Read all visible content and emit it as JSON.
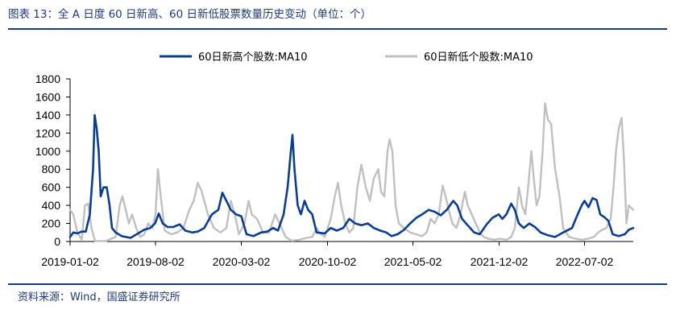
{
  "header": {
    "title": "图表 13：全 A 日度 60 日新高、60 日新低股票数量历史变动（单位：个）"
  },
  "footer": {
    "source": "资料来源：Wind，国盛证券研究所"
  },
  "colors": {
    "high": "#0b3d91",
    "low": "#c0c0c0",
    "brand": "#1f3a7a"
  },
  "chart_data": {
    "type": "line",
    "title": "",
    "xlabel": "",
    "ylabel": "",
    "ylim": [
      0,
      1800
    ],
    "yticks": [
      0,
      200,
      400,
      600,
      800,
      1000,
      1200,
      1400,
      1600,
      1800
    ],
    "xlim": [
      "2019-01-02",
      "2022-10-31"
    ],
    "xticks": [
      "2019-01-02",
      "2019-08-02",
      "2020-03-02",
      "2020-10-02",
      "2021-05-02",
      "2021-12-02",
      "2022-07-02"
    ],
    "grid": false,
    "legend_position": "top",
    "series": [
      {
        "name": "60日新高个股数:MA10",
        "color": "#0b3d91",
        "points": [
          [
            "2019-01-02",
            50
          ],
          [
            "2019-01-10",
            100
          ],
          [
            "2019-01-20",
            90
          ],
          [
            "2019-01-31",
            110
          ],
          [
            "2019-02-10",
            110
          ],
          [
            "2019-02-20",
            300
          ],
          [
            "2019-02-28",
            800
          ],
          [
            "2019-03-04",
            1400
          ],
          [
            "2019-03-09",
            1250
          ],
          [
            "2019-03-14",
            1000
          ],
          [
            "2019-03-19",
            500
          ],
          [
            "2019-03-26",
            600
          ],
          [
            "2019-04-03",
            600
          ],
          [
            "2019-04-10",
            400
          ],
          [
            "2019-04-16",
            150
          ],
          [
            "2019-04-25",
            100
          ],
          [
            "2019-05-10",
            60
          ],
          [
            "2019-06-01",
            40
          ],
          [
            "2019-06-20",
            90
          ],
          [
            "2019-07-05",
            130
          ],
          [
            "2019-07-20",
            150
          ],
          [
            "2019-08-01",
            200
          ],
          [
            "2019-08-10",
            310
          ],
          [
            "2019-08-20",
            200
          ],
          [
            "2019-09-01",
            160
          ],
          [
            "2019-09-15",
            160
          ],
          [
            "2019-10-01",
            190
          ],
          [
            "2019-10-15",
            120
          ],
          [
            "2019-11-01",
            100
          ],
          [
            "2019-11-15",
            110
          ],
          [
            "2019-12-01",
            150
          ],
          [
            "2019-12-20",
            300
          ],
          [
            "2020-01-05",
            350
          ],
          [
            "2020-01-15",
            540
          ],
          [
            "2020-01-25",
            450
          ],
          [
            "2020-02-05",
            350
          ],
          [
            "2020-02-18",
            300
          ],
          [
            "2020-03-02",
            280
          ],
          [
            "2020-03-15",
            80
          ],
          [
            "2020-04-01",
            60
          ],
          [
            "2020-04-20",
            100
          ],
          [
            "2020-05-05",
            110
          ],
          [
            "2020-05-20",
            150
          ],
          [
            "2020-06-01",
            120
          ],
          [
            "2020-06-15",
            300
          ],
          [
            "2020-06-25",
            600
          ],
          [
            "2020-07-03",
            1000
          ],
          [
            "2020-07-07",
            1180
          ],
          [
            "2020-07-12",
            800
          ],
          [
            "2020-07-20",
            400
          ],
          [
            "2020-07-28",
            300
          ],
          [
            "2020-08-06",
            450
          ],
          [
            "2020-08-15",
            350
          ],
          [
            "2020-08-25",
            300
          ],
          [
            "2020-09-05",
            100
          ],
          [
            "2020-09-25",
            90
          ],
          [
            "2020-10-10",
            150
          ],
          [
            "2020-10-25",
            120
          ],
          [
            "2020-11-10",
            150
          ],
          [
            "2020-11-25",
            250
          ],
          [
            "2020-12-10",
            200
          ],
          [
            "2020-12-25",
            180
          ],
          [
            "2021-01-10",
            200
          ],
          [
            "2021-01-25",
            150
          ],
          [
            "2021-02-10",
            120
          ],
          [
            "2021-02-25",
            100
          ],
          [
            "2021-03-10",
            60
          ],
          [
            "2021-03-25",
            80
          ],
          [
            "2021-04-10",
            130
          ],
          [
            "2021-04-25",
            200
          ],
          [
            "2021-05-10",
            260
          ],
          [
            "2021-05-25",
            300
          ],
          [
            "2021-06-10",
            350
          ],
          [
            "2021-06-25",
            330
          ],
          [
            "2021-07-10",
            290
          ],
          [
            "2021-07-25",
            350
          ],
          [
            "2021-08-10",
            450
          ],
          [
            "2021-08-20",
            400
          ],
          [
            "2021-09-01",
            250
          ],
          [
            "2021-09-15",
            180
          ],
          [
            "2021-10-01",
            100
          ],
          [
            "2021-10-15",
            80
          ],
          [
            "2021-11-01",
            190
          ],
          [
            "2021-11-15",
            260
          ],
          [
            "2021-12-01",
            300
          ],
          [
            "2021-12-10",
            250
          ],
          [
            "2021-12-20",
            300
          ],
          [
            "2022-01-01",
            420
          ],
          [
            "2022-01-10",
            350
          ],
          [
            "2022-01-20",
            200
          ],
          [
            "2022-02-01",
            150
          ],
          [
            "2022-02-15",
            200
          ],
          [
            "2022-03-01",
            160
          ],
          [
            "2022-03-15",
            100
          ],
          [
            "2022-04-01",
            70
          ],
          [
            "2022-04-20",
            50
          ],
          [
            "2022-05-10",
            100
          ],
          [
            "2022-06-01",
            150
          ],
          [
            "2022-06-15",
            300
          ],
          [
            "2022-06-25",
            400
          ],
          [
            "2022-07-02",
            450
          ],
          [
            "2022-07-12",
            380
          ],
          [
            "2022-07-22",
            480
          ],
          [
            "2022-08-01",
            460
          ],
          [
            "2022-08-10",
            300
          ],
          [
            "2022-08-20",
            270
          ],
          [
            "2022-08-30",
            230
          ],
          [
            "2022-09-10",
            80
          ],
          [
            "2022-09-25",
            60
          ],
          [
            "2022-10-10",
            80
          ],
          [
            "2022-10-20",
            130
          ],
          [
            "2022-10-31",
            150
          ]
        ]
      },
      {
        "name": "60日新低个股数:MA10",
        "color": "#c0c0c0",
        "points": [
          [
            "2019-01-02",
            350
          ],
          [
            "2019-01-10",
            300
          ],
          [
            "2019-01-20",
            100
          ],
          [
            "2019-01-31",
            20
          ],
          [
            "2019-02-08",
            400
          ],
          [
            "2019-02-16",
            420
          ],
          [
            "2019-02-24",
            150
          ],
          [
            "2019-03-05",
            5
          ],
          [
            "2019-04-01",
            5
          ],
          [
            "2019-04-25",
            50
          ],
          [
            "2019-05-05",
            400
          ],
          [
            "2019-05-12",
            500
          ],
          [
            "2019-05-20",
            350
          ],
          [
            "2019-05-28",
            200
          ],
          [
            "2019-06-05",
            300
          ],
          [
            "2019-06-15",
            150
          ],
          [
            "2019-06-25",
            50
          ],
          [
            "2019-07-05",
            80
          ],
          [
            "2019-07-15",
            200
          ],
          [
            "2019-07-25",
            150
          ],
          [
            "2019-08-02",
            300
          ],
          [
            "2019-08-08",
            800
          ],
          [
            "2019-08-15",
            500
          ],
          [
            "2019-08-25",
            120
          ],
          [
            "2019-09-10",
            80
          ],
          [
            "2019-09-25",
            100
          ],
          [
            "2019-10-10",
            150
          ],
          [
            "2019-10-25",
            350
          ],
          [
            "2019-11-05",
            450
          ],
          [
            "2019-11-15",
            650
          ],
          [
            "2019-11-25",
            550
          ],
          [
            "2019-12-10",
            300
          ],
          [
            "2019-12-25",
            150
          ],
          [
            "2020-01-10",
            100
          ],
          [
            "2020-01-25",
            150
          ],
          [
            "2020-02-05",
            450
          ],
          [
            "2020-02-15",
            300
          ],
          [
            "2020-02-25",
            80
          ],
          [
            "2020-03-10",
            200
          ],
          [
            "2020-03-20",
            450
          ],
          [
            "2020-03-28",
            300
          ],
          [
            "2020-04-10",
            250
          ],
          [
            "2020-04-25",
            100
          ],
          [
            "2020-05-10",
            100
          ],
          [
            "2020-05-25",
            300
          ],
          [
            "2020-06-05",
            200
          ],
          [
            "2020-06-20",
            50
          ],
          [
            "2020-07-05",
            10
          ],
          [
            "2020-07-25",
            20
          ],
          [
            "2020-08-10",
            40
          ],
          [
            "2020-08-25",
            50
          ],
          [
            "2020-09-05",
            150
          ],
          [
            "2020-09-12",
            100
          ],
          [
            "2020-09-25",
            50
          ],
          [
            "2020-10-10",
            250
          ],
          [
            "2020-10-20",
            500
          ],
          [
            "2020-10-28",
            650
          ],
          [
            "2020-11-05",
            400
          ],
          [
            "2020-11-15",
            200
          ],
          [
            "2020-11-25",
            100
          ],
          [
            "2020-12-05",
            150
          ],
          [
            "2020-12-15",
            600
          ],
          [
            "2020-12-25",
            850
          ],
          [
            "2021-01-05",
            600
          ],
          [
            "2021-01-15",
            450
          ],
          [
            "2021-01-25",
            700
          ],
          [
            "2021-02-05",
            800
          ],
          [
            "2021-02-12",
            550
          ],
          [
            "2021-02-20",
            500
          ],
          [
            "2021-02-28",
            1000
          ],
          [
            "2021-03-05",
            1130
          ],
          [
            "2021-03-12",
            1000
          ],
          [
            "2021-03-20",
            400
          ],
          [
            "2021-03-28",
            200
          ],
          [
            "2021-04-10",
            150
          ],
          [
            "2021-04-25",
            100
          ],
          [
            "2021-05-10",
            80
          ],
          [
            "2021-05-25",
            60
          ],
          [
            "2021-06-05",
            100
          ],
          [
            "2021-06-15",
            250
          ],
          [
            "2021-06-25",
            200
          ],
          [
            "2021-07-05",
            300
          ],
          [
            "2021-07-15",
            620
          ],
          [
            "2021-07-22",
            500
          ],
          [
            "2021-07-30",
            350
          ],
          [
            "2021-08-08",
            200
          ],
          [
            "2021-08-18",
            150
          ],
          [
            "2021-08-28",
            300
          ],
          [
            "2021-09-08",
            550
          ],
          [
            "2021-09-15",
            400
          ],
          [
            "2021-09-25",
            300
          ],
          [
            "2021-10-05",
            200
          ],
          [
            "2021-10-15",
            100
          ],
          [
            "2021-10-25",
            50
          ],
          [
            "2021-11-05",
            30
          ],
          [
            "2021-11-20",
            20
          ],
          [
            "2021-12-05",
            30
          ],
          [
            "2021-12-20",
            20
          ],
          [
            "2022-01-01",
            50
          ],
          [
            "2022-01-10",
            150
          ],
          [
            "2022-01-20",
            600
          ],
          [
            "2022-01-28",
            400
          ],
          [
            "2022-02-05",
            300
          ],
          [
            "2022-02-12",
            600
          ],
          [
            "2022-02-20",
            1000
          ],
          [
            "2022-02-26",
            700
          ],
          [
            "2022-03-05",
            400
          ],
          [
            "2022-03-12",
            500
          ],
          [
            "2022-03-20",
            1000
          ],
          [
            "2022-03-26",
            1530
          ],
          [
            "2022-04-02",
            1350
          ],
          [
            "2022-04-10",
            1300
          ],
          [
            "2022-04-20",
            800
          ],
          [
            "2022-05-01",
            500
          ],
          [
            "2022-05-10",
            150
          ],
          [
            "2022-05-25",
            50
          ],
          [
            "2022-06-10",
            30
          ],
          [
            "2022-06-25",
            20
          ],
          [
            "2022-07-10",
            30
          ],
          [
            "2022-07-25",
            50
          ],
          [
            "2022-08-05",
            100
          ],
          [
            "2022-08-15",
            130
          ],
          [
            "2022-08-25",
            150
          ],
          [
            "2022-09-05",
            250
          ],
          [
            "2022-09-12",
            600
          ],
          [
            "2022-09-18",
            1000
          ],
          [
            "2022-09-25",
            1250
          ],
          [
            "2022-10-02",
            1370
          ],
          [
            "2022-10-08",
            900
          ],
          [
            "2022-10-14",
            200
          ],
          [
            "2022-10-20",
            400
          ],
          [
            "2022-10-31",
            350
          ]
        ]
      }
    ]
  }
}
